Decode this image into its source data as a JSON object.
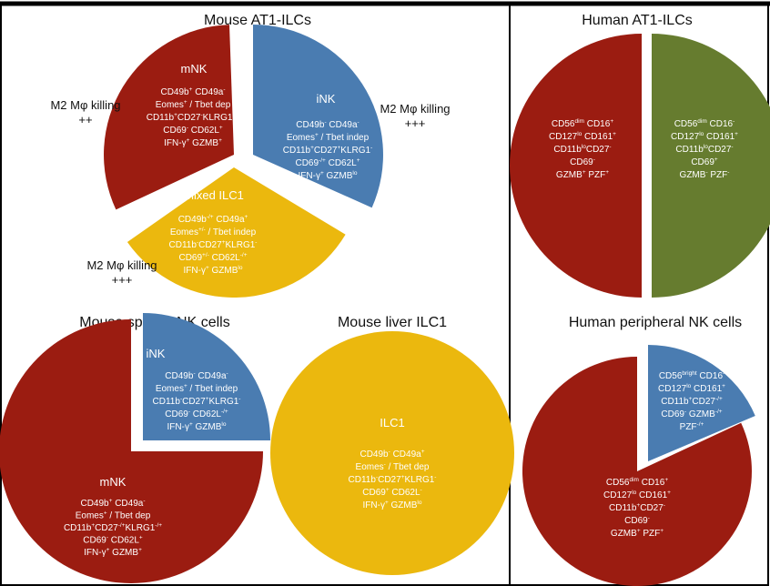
{
  "colors": {
    "mNK": "#9b1c11",
    "iNK": "#4a7cb1",
    "ILC1": "#ebb80e",
    "human_neg": "#667c2f",
    "frame": "#000000"
  },
  "panels": {
    "mouse_at1": {
      "title": "Mouse AT1-ILCs",
      "slices": {
        "mnk": {
          "name": "mNK",
          "lines": [
            [
              [
                "CD49b",
                "+"
              ],
              [
                " CD49a",
                "-"
              ]
            ],
            [
              [
                "Eomes",
                "+"
              ],
              [
                " / Tbet dep",
                ""
              ]
            ],
            [
              [
                "CD11b",
                "+"
              ],
              [
                "CD27",
                "-"
              ],
              [
                "KLRG1",
                "+/-"
              ]
            ],
            [
              [
                "CD69",
                "-"
              ],
              [
                " CD62L",
                "+"
              ]
            ],
            [
              [
                "IFN-γ",
                "+"
              ],
              [
                " GZMB",
                "+"
              ]
            ]
          ]
        },
        "ink": {
          "name": "iNK",
          "lines": [
            [
              [
                "CD49b",
                "-"
              ],
              [
                " CD49a",
                "-"
              ]
            ],
            [
              [
                "Eomes",
                "+"
              ],
              [
                " / Tbet indep",
                ""
              ]
            ],
            [
              [
                "CD11b",
                "+"
              ],
              [
                "CD27",
                "+"
              ],
              [
                "KLRG1",
                "-"
              ]
            ],
            [
              [
                "CD69",
                "-/+"
              ],
              [
                " CD62L",
                "+"
              ]
            ],
            [
              [
                "IFN-γ",
                "+"
              ],
              [
                " GZMB",
                "lo"
              ]
            ]
          ]
        },
        "mixed": {
          "name": "mixed ILC1",
          "lines": [
            [
              [
                "CD49b",
                "-/+"
              ],
              [
                " CD49a",
                "+"
              ]
            ],
            [
              [
                "Eomes",
                "+/-"
              ],
              [
                " / Tbet indep",
                ""
              ]
            ],
            [
              [
                "CD11b",
                "-"
              ],
              [
                "CD27",
                "+"
              ],
              [
                "KLRG1",
                "-"
              ]
            ],
            [
              [
                "CD69",
                "+/-"
              ],
              [
                " CD62L",
                "-/+"
              ]
            ],
            [
              [
                "IFN-γ",
                "+"
              ],
              [
                " GZMB",
                "lo"
              ]
            ]
          ]
        }
      },
      "killing": [
        {
          "label": "M2 Mφ killing",
          "level": "++"
        },
        {
          "label": "M2 Mφ killing",
          "level": "+++"
        },
        {
          "label": "M2 Mφ killing",
          "level": "+++"
        }
      ]
    },
    "human_at1": {
      "title": "Human AT1-ILCs",
      "left_lines": [
        [
          [
            "CD56",
            "dim"
          ],
          [
            " CD16",
            "+"
          ]
        ],
        [
          [
            "CD127",
            "lo"
          ],
          [
            " CD161",
            "+"
          ]
        ],
        [
          [
            "CD11b",
            "lo"
          ],
          [
            "CD27",
            "-"
          ]
        ],
        [
          [
            "CD69",
            "-"
          ]
        ],
        [
          [
            "GZMB",
            "+"
          ],
          [
            " PZF",
            "+"
          ]
        ]
      ],
      "right_lines": [
        [
          [
            "CD56",
            "dim"
          ],
          [
            " CD16",
            "-"
          ]
        ],
        [
          [
            "CD127",
            "lo"
          ],
          [
            " CD161",
            "+"
          ]
        ],
        [
          [
            "CD11b",
            "lo"
          ],
          [
            "CD27",
            "-"
          ]
        ],
        [
          [
            "CD69",
            "+"
          ]
        ],
        [
          [
            "GZMB",
            "-"
          ],
          [
            " PZF",
            "-"
          ]
        ]
      ]
    },
    "mouse_splenic": {
      "title": "Mouse splenic NK cells",
      "ink": {
        "name": "iNK",
        "lines": [
          [
            [
              "CD49b",
              "-"
            ],
            [
              " CD49a",
              "-"
            ]
          ],
          [
            [
              "Eomes",
              "+"
            ],
            [
              " / Tbet indep",
              ""
            ]
          ],
          [
            [
              "CD11b",
              "-"
            ],
            [
              "CD27",
              "+"
            ],
            [
              "KLRG1",
              "-"
            ]
          ],
          [
            [
              "CD69",
              "-"
            ],
            [
              " CD62L",
              "-/+"
            ]
          ],
          [
            [
              "IFN-γ",
              "+"
            ],
            [
              " GZMB",
              "lo"
            ]
          ]
        ]
      },
      "mnk": {
        "name": "mNK",
        "lines": [
          [
            [
              "CD49b",
              "+"
            ],
            [
              " CD49a",
              "-"
            ]
          ],
          [
            [
              "Eomes",
              "+"
            ],
            [
              " / Tbet dep",
              ""
            ]
          ],
          [
            [
              "CD11b",
              "+"
            ],
            [
              "CD27",
              "-/+"
            ],
            [
              "KLRG1",
              "-/+"
            ]
          ],
          [
            [
              "CD69",
              "-"
            ],
            [
              " CD62L",
              "+"
            ]
          ],
          [
            [
              "IFN-γ",
              "+"
            ],
            [
              " GZMB",
              "+"
            ]
          ]
        ]
      }
    },
    "mouse_liver": {
      "title": "Mouse liver ILC1",
      "ilc1": {
        "name": "ILC1",
        "lines": [
          [
            [
              "CD49b",
              "-"
            ],
            [
              " CD49a",
              "+"
            ]
          ],
          [
            [
              "Eomes",
              "-"
            ],
            [
              " / Tbet dep",
              ""
            ]
          ],
          [
            [
              "CD11b",
              "-"
            ],
            [
              "CD27",
              "+"
            ],
            [
              "KLRG1",
              "-"
            ]
          ],
          [
            [
              "CD69",
              "+"
            ],
            [
              " CD62L",
              "-"
            ]
          ],
          [
            [
              "IFN-γ",
              "+"
            ],
            [
              " GZMB",
              "lo"
            ]
          ]
        ]
      }
    },
    "human_peripheral": {
      "title": "Human peripheral NK cells",
      "small_lines": [
        [
          [
            "CD56",
            "bright"
          ],
          [
            " CD16",
            "-"
          ]
        ],
        [
          [
            "CD127",
            "lo"
          ],
          [
            " CD161",
            "+"
          ]
        ],
        [
          [
            "CD11b",
            "+"
          ],
          [
            "CD27",
            "-/+"
          ]
        ],
        [
          [
            "CD69",
            "-"
          ],
          [
            " GZMB",
            "-/+"
          ]
        ],
        [
          [
            "PZF",
            "-/+"
          ]
        ]
      ],
      "large_lines": [
        [
          [
            "CD56",
            "dim"
          ],
          [
            " CD16",
            "+"
          ]
        ],
        [
          [
            "CD127",
            "lo"
          ],
          [
            " CD161",
            "+"
          ]
        ],
        [
          [
            "CD11b",
            "+"
          ],
          [
            "CD27",
            "-"
          ]
        ],
        [
          [
            "CD69",
            "-"
          ]
        ],
        [
          [
            "GZMB",
            "+"
          ],
          [
            " PZF",
            "+"
          ]
        ]
      ]
    }
  }
}
